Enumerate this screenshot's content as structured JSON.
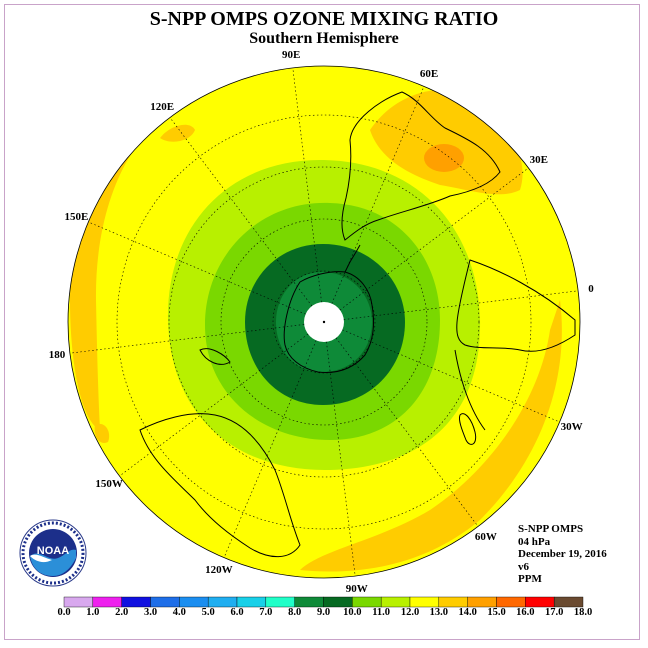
{
  "title": "S-NPP OMPS OZONE MIXING RATIO",
  "subtitle": "Southern Hemisphere",
  "longitude_labels": [
    {
      "text": "90W",
      "lon": -90
    },
    {
      "text": "60W",
      "lon": -60
    },
    {
      "text": "30W",
      "lon": -30
    },
    {
      "text": "0",
      "lon": 0
    },
    {
      "text": "30E",
      "lon": 30
    },
    {
      "text": "60E",
      "lon": 60
    },
    {
      "text": "90E",
      "lon": 90
    },
    {
      "text": "120E",
      "lon": 120
    },
    {
      "text": "150E",
      "lon": 150
    },
    {
      "text": "180",
      "lon": 180
    },
    {
      "text": "150W",
      "lon": -150
    },
    {
      "text": "120W",
      "lon": -120
    }
  ],
  "info": {
    "instrument": "S-NPP OMPS",
    "level": "04 hPa",
    "date": "December 19, 2016",
    "version": "v6",
    "units": "PPM"
  },
  "colorbar": {
    "ticks": [
      "0.0",
      "1.0",
      "2.0",
      "3.0",
      "4.0",
      "5.0",
      "6.0",
      "7.0",
      "8.0",
      "9.0",
      "10.0",
      "11.0",
      "12.0",
      "13.0",
      "14.0",
      "15.0",
      "16.0",
      "17.0",
      "18.0"
    ],
    "colors": [
      "#b07ee8",
      "#d8a8ee",
      "#ee20ee",
      "#1010e0",
      "#1e6ee8",
      "#1b8ef0",
      "#20aef0",
      "#18d0e8",
      "#20ffc8",
      "#0e8a38",
      "#066a22",
      "#7ad800",
      "#b8f000",
      "#ffff00",
      "#ffcc00",
      "#ffa000",
      "#ff6800",
      "#ff0000",
      "#6a4a30"
    ]
  },
  "map_colors": {
    "ocean_fill": "#ffff00",
    "band_orange": "#ffcc00",
    "band_dark_orange": "#ffa000",
    "light_green": "#b8f000",
    "green": "#7ad800",
    "dark_green": "#066a22",
    "mid_green": "#0e8a38",
    "pole_gap": "#ffffff"
  },
  "logo": {
    "name": "NOAA"
  }
}
